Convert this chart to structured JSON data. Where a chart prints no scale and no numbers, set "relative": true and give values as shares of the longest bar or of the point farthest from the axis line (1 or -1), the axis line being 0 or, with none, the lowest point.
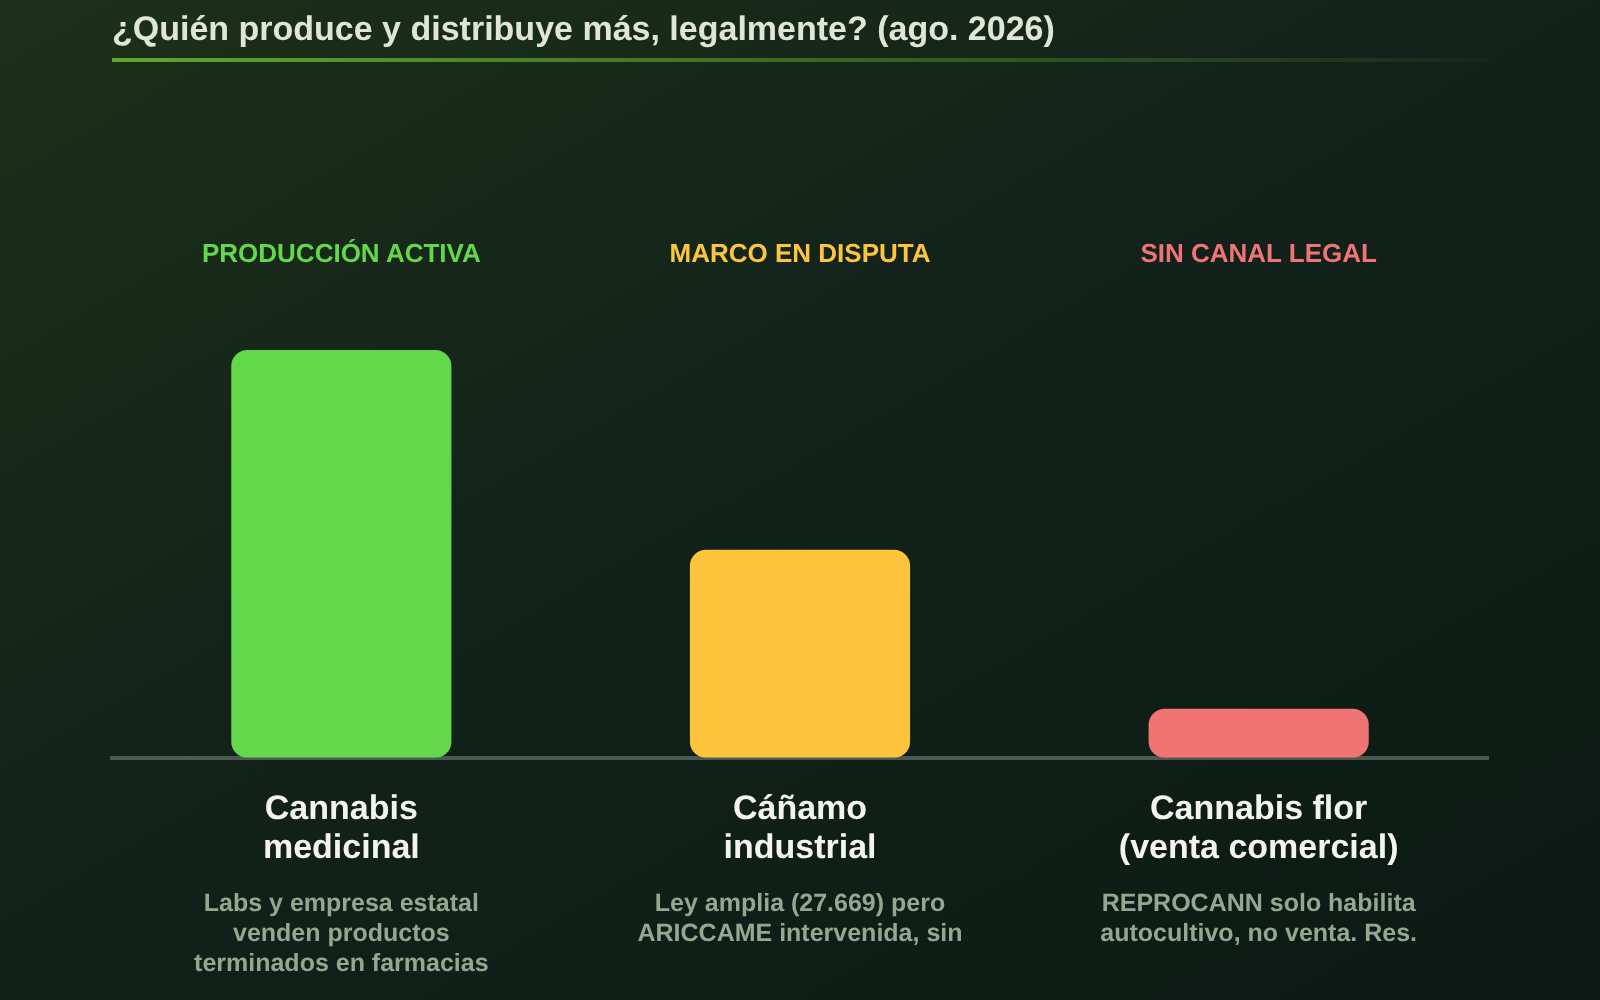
{
  "chart_data": {
    "type": "bar",
    "title": "¿Quién produce y distribuye más, legalmente? (ago. 2026)",
    "categories": [
      "Cannabis medicinal",
      "Cáñamo industrial",
      "Cannabis flor (venta comercial)"
    ],
    "values": [
      1,
      0.51,
      0.12
    ],
    "colors": [
      "#62d84a",
      "#fdc53e",
      "#f07474"
    ],
    "relative": true,
    "annotations": [
      "PRODUCCIÓN ACTIVA",
      "MARCO EN DISPUTA",
      "SIN CANAL LEGAL",
      "Labs y empresa estatal venden productos terminados en farmacias",
      "Ley amplia (27.669) pero ARICCAME intervenida, sin",
      "REPROCANN solo habilita autocultivo, no venta. Res."
    ]
  }
}
